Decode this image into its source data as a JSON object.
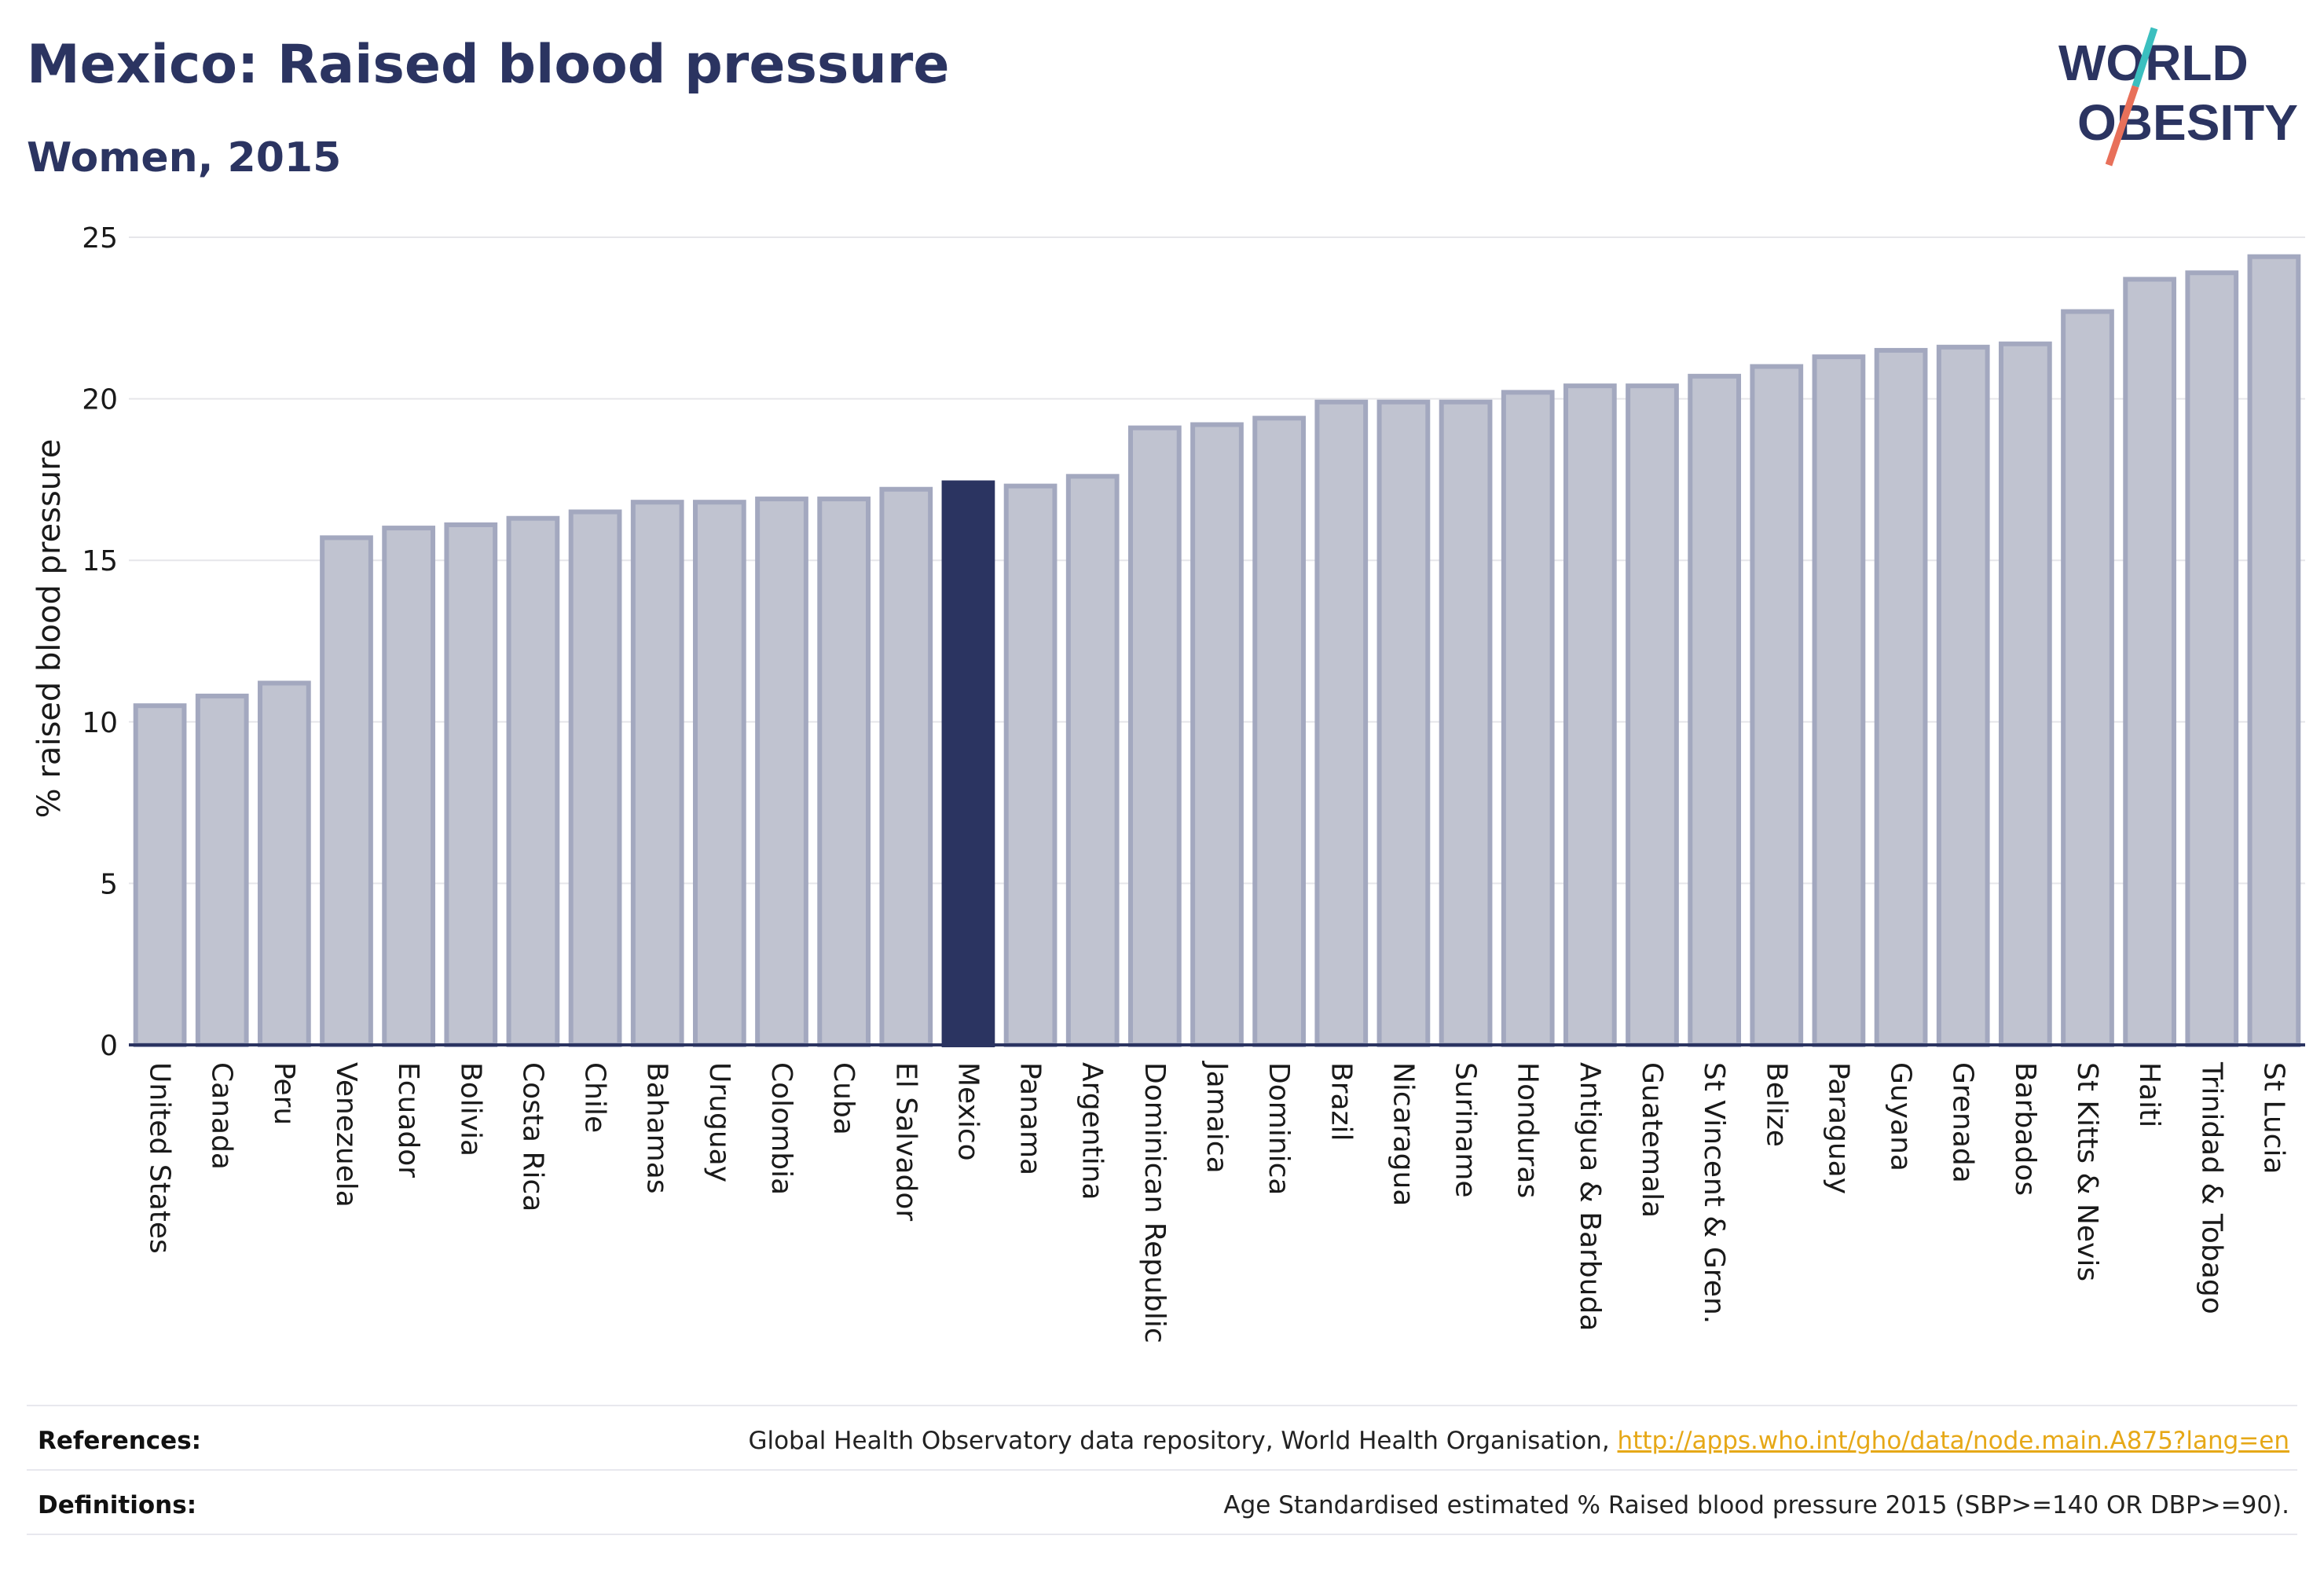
{
  "header": {
    "title": "Mexico: Raised blood pressure",
    "subtitle": "Women, 2015"
  },
  "logo": {
    "line1": "WORLD",
    "line2": "OBESITY",
    "slash_color_top": "#3bbfbf",
    "slash_color_bottom": "#e8705a"
  },
  "colors": {
    "bar_fill": "#c0c3d0",
    "bar_stroke": "#a3a8bf",
    "highlight_fill": "#2b3461",
    "text": "#2b3461",
    "grid": "#e6e6ea"
  },
  "chart_data": {
    "type": "bar",
    "ylabel": "% raised blood pressure",
    "ylim": [
      0,
      25
    ],
    "yticks": [
      0,
      5,
      10,
      15,
      20,
      25
    ],
    "grid": true,
    "highlight": "Mexico",
    "categories": [
      "United States",
      "Canada",
      "Peru",
      "Venezuela",
      "Ecuador",
      "Bolivia",
      "Costa Rica",
      "Chile",
      "Bahamas",
      "Uruguay",
      "Colombia",
      "Cuba",
      "El Salvador",
      "Mexico",
      "Panama",
      "Argentina",
      "Dominican Republic",
      "Jamaica",
      "Dominica",
      "Brazil",
      "Nicaragua",
      "Suriname",
      "Honduras",
      "Antigua & Barbuda",
      "Guatemala",
      "St Vincent & Gren.",
      "Belize",
      "Paraguay",
      "Guyana",
      "Grenada",
      "Barbados",
      "St Kitts & Nevis",
      "Haiti",
      "Trinidad & Tobago",
      "St Lucia"
    ],
    "values": [
      10.5,
      10.8,
      11.2,
      15.7,
      16.0,
      16.1,
      16.3,
      16.5,
      16.8,
      16.8,
      16.9,
      16.9,
      17.2,
      17.4,
      17.3,
      17.6,
      19.1,
      19.2,
      19.4,
      19.9,
      19.9,
      19.9,
      20.2,
      20.4,
      20.4,
      20.7,
      21.0,
      21.3,
      21.5,
      21.6,
      21.7,
      22.7,
      23.7,
      23.9,
      24.4
    ]
  },
  "footer": {
    "references_label": "References:",
    "references_text": "Global Health Observatory data repository, World Health Organisation, ",
    "references_link": "http://apps.who.int/gho/data/node.main.A875?lang=en",
    "definitions_label": "Definitions:",
    "definitions_text": "Age Standardised estimated % Raised blood pressure 2015 (SBP>=140 OR DBP>=90)."
  }
}
